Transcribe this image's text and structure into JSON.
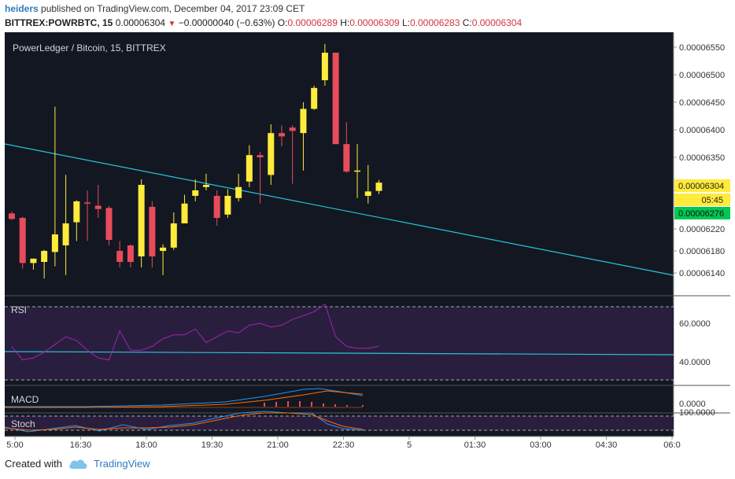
{
  "header": {
    "author": "heiders",
    "published_text": "published on TradingView.com, December 04, 2017 23:09 CET",
    "symbol": "BITTREX:POWRBTC, 15",
    "last_price": "0.00006304",
    "change": "−0.00000040 (−0.63%)",
    "o_label": "O:",
    "o_value": "0.00006289",
    "h_label": "H:",
    "h_value": "0.00006309",
    "l_label": "L:",
    "l_value": "0.00006283",
    "c_label": "C:",
    "c_value": "0.00006304"
  },
  "footer": {
    "created_with": "Created with",
    "brand": "TradingView"
  },
  "colors": {
    "bg": "#131722",
    "up": "#ffeb3b",
    "down": "#e84b5b",
    "trendline": "#26c6da",
    "rsi": "#9c27b0",
    "macd": "#2196f3",
    "signal": "#ff6d00",
    "stoch_band": "#2a1e3e"
  },
  "chart_data": {
    "type": "candlestick",
    "title": "PowerLedger / Bitcoin, 15, BITTREX",
    "x_ticks": [
      "5:00",
      "16:30",
      "18:00",
      "19:30",
      "21:00",
      "22:30",
      "5",
      "01:30",
      "03:00",
      "04:30",
      "06:0"
    ],
    "y_ticks": [
      "0.00006550",
      "0.00006500",
      "0.00006450",
      "0.00006400",
      "0.00006350",
      "0.00006220",
      "0.00006180",
      "0.00006140"
    ],
    "ylim": [
      6.12e-05,
      6.57e-05
    ],
    "price_tags": [
      {
        "label": "0.00006304",
        "style": "up"
      },
      {
        "label": "05:45",
        "style": "timer"
      },
      {
        "label": "0.00006276",
        "style": "green"
      }
    ],
    "candles": [
      [
        6.248e-05,
        6.252e-05,
        6.236e-05,
        6.238e-05
      ],
      [
        6.24e-05,
        6.242e-05,
        6.148e-05,
        6.158e-05
      ],
      [
        6.158e-05,
        6.166e-05,
        6.146e-05,
        6.166e-05
      ],
      [
        6.16e-05,
        6.182e-05,
        6.13e-05,
        6.18e-05
      ],
      [
        6.178e-05,
        6.442e-05,
        6.152e-05,
        6.21e-05
      ],
      [
        6.19e-05,
        6.318e-05,
        6.136e-05,
        6.23e-05
      ],
      [
        6.232e-05,
        6.272e-05,
        6.198e-05,
        6.27e-05
      ],
      [
        6.268e-05,
        6.29e-05,
        6.198e-05,
        6.266e-05
      ],
      [
        6.262e-05,
        6.3e-05,
        6.24e-05,
        6.256e-05
      ],
      [
        6.258e-05,
        6.262e-05,
        6.19e-05,
        6.2e-05
      ],
      [
        6.18e-05,
        6.198e-05,
        6.15e-05,
        6.16e-05
      ],
      [
        6.19e-05,
        6.192e-05,
        6.15e-05,
        6.16e-05
      ],
      [
        6.17e-05,
        6.31e-05,
        6.15e-05,
        6.3e-05
      ],
      [
        6.26e-05,
        6.27e-05,
        6.15e-05,
        6.17e-05
      ],
      [
        6.18e-05,
        6.192e-05,
        6.136e-05,
        6.186e-05
      ],
      [
        6.186e-05,
        6.25e-05,
        6.182e-05,
        6.23e-05
      ],
      [
        6.23e-05,
        6.282e-05,
        6.23e-05,
        6.266e-05
      ],
      [
        6.28e-05,
        6.31e-05,
        6.27e-05,
        6.29e-05
      ],
      [
        6.296e-05,
        6.32e-05,
        6.29e-05,
        6.3e-05
      ],
      [
        6.28e-05,
        6.29e-05,
        6.226e-05,
        6.24e-05
      ],
      [
        6.246e-05,
        6.292e-05,
        6.24e-05,
        6.28e-05
      ],
      [
        6.276e-05,
        6.32e-05,
        6.27e-05,
        6.296e-05
      ],
      [
        6.306e-05,
        6.372e-05,
        6.296e-05,
        6.354e-05
      ],
      [
        6.354e-05,
        6.36e-05,
        6.266e-05,
        6.35e-05
      ],
      [
        6.318e-05,
        6.41e-05,
        6.3e-05,
        6.394e-05
      ],
      [
        6.394e-05,
        6.408e-05,
        6.37e-05,
        6.388e-05
      ],
      [
        6.404e-05,
        6.408e-05,
        6.302e-05,
        6.398e-05
      ],
      [
        6.394e-05,
        6.45e-05,
        6.326e-05,
        6.438e-05
      ],
      [
        6.438e-05,
        6.48e-05,
        6.436e-05,
        6.476e-05
      ],
      [
        6.49e-05,
        6.556e-05,
        6.48e-05,
        6.54e-05
      ],
      [
        6.54e-05,
        6.54e-05,
        6.374e-05,
        6.374e-05
      ],
      [
        6.374e-05,
        6.414e-05,
        6.322e-05,
        6.324e-05
      ],
      [
        6.324e-05,
        6.374e-05,
        6.276e-05,
        6.326e-05
      ],
      [
        6.28e-05,
        6.336e-05,
        6.266e-05,
        6.288e-05
      ],
      [
        6.289e-05,
        6.309e-05,
        6.283e-05,
        6.304e-05
      ]
    ],
    "rsi": {
      "label": "RSI",
      "y_ticks": [
        "60.0000",
        "40.0000"
      ],
      "values": [
        48,
        41,
        42,
        45,
        49,
        53,
        51,
        46,
        42,
        41,
        56,
        46,
        46,
        48,
        52,
        54,
        54,
        57,
        50,
        53,
        56,
        55,
        59,
        60,
        58,
        59,
        62,
        64,
        66,
        70,
        53,
        48,
        47,
        47,
        48
      ]
    },
    "macd": {
      "label": "MACD",
      "y_ticks": [
        "0.0000"
      ]
    },
    "stoch": {
      "label": "Stoch",
      "y_ticks": [
        "100.0000"
      ]
    }
  }
}
